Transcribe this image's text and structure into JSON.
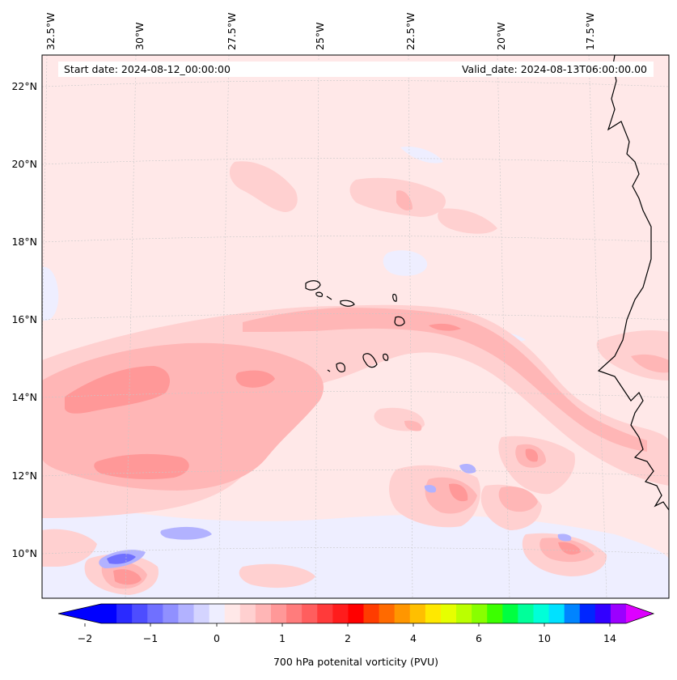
{
  "header": {
    "start_date": "Start date: 2024-08-12_00:00:00",
    "valid_date": "Valid_date: 2024-08-13T06:00:00.00"
  },
  "lon_labels": [
    "32.5°W",
    "30°W",
    "27.5°W",
    "25°W",
    "22.5°W",
    "20°W",
    "17.5°W"
  ],
  "lat_labels": [
    "22°N",
    "20°N",
    "18°N",
    "16°N",
    "14°N",
    "12°N",
    "10°N"
  ],
  "colorbar": {
    "label": "700 hPa potenital vorticity (PVU)",
    "ticks": [
      "−2",
      "−1",
      "0",
      "1",
      "2",
      "4",
      "6",
      "10",
      "14"
    ],
    "colors": [
      "#0000ff",
      "#2a2aff",
      "#4d4dff",
      "#7070ff",
      "#9090ff",
      "#b2b2ff",
      "#d4d4ff",
      "#eeeeff",
      "#ffe8e8",
      "#ffd0d0",
      "#ffb6b6",
      "#ff9898",
      "#ff7c7c",
      "#ff5e5e",
      "#ff3a3a",
      "#ff1c1c",
      "#ff0000",
      "#ff3c00",
      "#ff6a00",
      "#ff9600",
      "#ffbf00",
      "#ffe800",
      "#e6ff00",
      "#bbff00",
      "#88ff00",
      "#3cff00",
      "#00ff40",
      "#00ff9a",
      "#00ffd8",
      "#00e1ff",
      "#0084ff",
      "#0026ff",
      "#3200ff",
      "#9b00ff"
    ],
    "over_color": "#dd00ff",
    "under_color": "#0000ff"
  },
  "colors": {
    "background": "#ffe8e8",
    "light_red": "#ffd0d0",
    "mid_red": "#ffb6b6",
    "strong_red": "#ff7c7c",
    "light_blue": "#eeeeff",
    "blue": "#9090ff",
    "coastline": "#000000"
  }
}
